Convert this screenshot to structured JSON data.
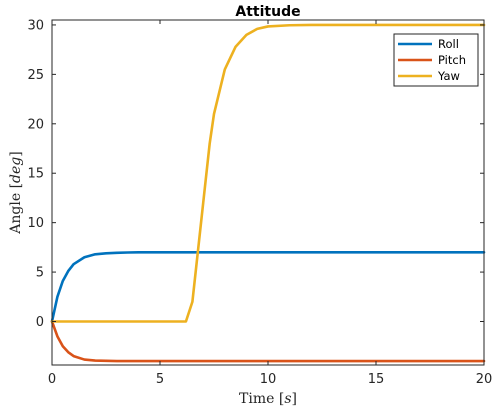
{
  "chart_data": {
    "type": "line",
    "title": "Attitude",
    "xlabel": {
      "prefix": "Time ",
      "unit": "s"
    },
    "ylabel": {
      "prefix": "Angle ",
      "unit": "deg"
    },
    "xlim": [
      0,
      20
    ],
    "ylim": [
      -4.4,
      30.5
    ],
    "xticks": [
      0,
      5,
      10,
      15,
      20
    ],
    "yticks": [
      0,
      5,
      10,
      15,
      20,
      25,
      30
    ],
    "grid": false,
    "legend_position": "top-right",
    "series": [
      {
        "name": "Roll",
        "color": "#0072BD",
        "x": [
          0,
          0.25,
          0.5,
          0.75,
          1,
          1.5,
          2,
          2.5,
          3,
          3.5,
          4,
          5,
          6,
          8,
          10,
          12,
          14,
          16,
          18,
          20
        ],
        "y": [
          0,
          2.5,
          4.1,
          5.1,
          5.8,
          6.5,
          6.8,
          6.9,
          6.95,
          6.98,
          7,
          7,
          7,
          7,
          7,
          7,
          7,
          7,
          7,
          7
        ]
      },
      {
        "name": "Pitch",
        "color": "#D95319",
        "x": [
          0,
          0.25,
          0.5,
          0.75,
          1,
          1.5,
          2,
          2.5,
          3,
          3.5,
          4,
          5,
          6,
          8,
          10,
          12,
          14,
          16,
          18,
          20
        ],
        "y": [
          0,
          -1.5,
          -2.5,
          -3.1,
          -3.5,
          -3.85,
          -3.95,
          -3.98,
          -4,
          -4,
          -4,
          -4,
          -4,
          -4,
          -4,
          -4,
          -4,
          -4,
          -4,
          -4
        ]
      },
      {
        "name": "Yaw",
        "color": "#EDB120",
        "x": [
          0,
          1,
          2,
          3,
          4,
          5,
          6,
          6.2,
          6.5,
          6.7,
          7,
          7.3,
          7.5,
          8,
          8.5,
          9,
          9.5,
          10,
          11,
          12,
          14,
          16,
          18,
          20
        ],
        "y": [
          0,
          0,
          0,
          0,
          0,
          0,
          0,
          0,
          2,
          6,
          12,
          18,
          21,
          25.5,
          27.8,
          29,
          29.6,
          29.85,
          29.97,
          30,
          30,
          30,
          30,
          30
        ]
      }
    ]
  }
}
